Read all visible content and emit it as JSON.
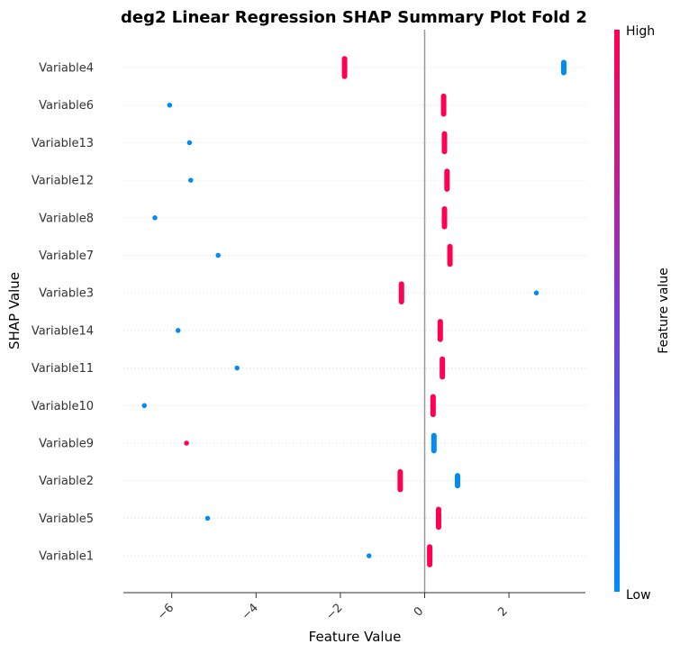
{
  "chart_data": {
    "type": "scatter",
    "title": "deg2 Linear Regression SHAP Summary Plot Fold 2",
    "xlabel": "Feature Value",
    "ylabel": "SHAP Value",
    "xlim": [
      -7.2,
      3.8
    ],
    "xticks": [
      -6,
      -4,
      -2,
      0,
      2
    ],
    "xtick_labels": [
      "−6",
      "−4",
      "−2",
      "0",
      "2"
    ],
    "grid": false,
    "zero_line": true,
    "colors": {
      "high": "#ff0052",
      "low": "#008bfb"
    },
    "colorbar": {
      "title": "Feature value",
      "high_label": "High",
      "low_label": "Low",
      "placement": "right"
    },
    "categories": [
      "Variable4",
      "Variable6",
      "Variable13",
      "Variable12",
      "Variable8",
      "Variable7",
      "Variable3",
      "Variable14",
      "Variable11",
      "Variable10",
      "Variable9",
      "Variable2",
      "Variable5",
      "Variable1"
    ],
    "series": [
      {
        "feature": "Variable4",
        "points": [
          {
            "x": -1.9,
            "level": "high",
            "spread": 0.7
          },
          {
            "x": 3.3,
            "level": "low",
            "spread": 0.4
          }
        ]
      },
      {
        "feature": "Variable6",
        "points": [
          {
            "x": -6.05,
            "level": "low",
            "spread": 0.0
          },
          {
            "x": 0.45,
            "level": "high",
            "spread": 0.7
          }
        ]
      },
      {
        "feature": "Variable13",
        "points": [
          {
            "x": -5.58,
            "level": "low",
            "spread": 0.0
          },
          {
            "x": 0.47,
            "level": "high",
            "spread": 0.7
          }
        ]
      },
      {
        "feature": "Variable12",
        "points": [
          {
            "x": -5.55,
            "level": "low",
            "spread": 0.0
          },
          {
            "x": 0.53,
            "level": "high",
            "spread": 0.7
          }
        ]
      },
      {
        "feature": "Variable8",
        "points": [
          {
            "x": -6.4,
            "level": "low",
            "spread": 0.0
          },
          {
            "x": 0.47,
            "level": "high",
            "spread": 0.7
          }
        ]
      },
      {
        "feature": "Variable7",
        "points": [
          {
            "x": -4.9,
            "level": "low",
            "spread": 0.0
          },
          {
            "x": 0.6,
            "level": "high",
            "spread": 0.7
          }
        ]
      },
      {
        "feature": "Variable3",
        "points": [
          {
            "x": -0.55,
            "level": "high",
            "spread": 0.7
          },
          {
            "x": 2.65,
            "level": "low",
            "spread": 0.0
          }
        ]
      },
      {
        "feature": "Variable14",
        "points": [
          {
            "x": -5.85,
            "level": "low",
            "spread": 0.0
          },
          {
            "x": 0.37,
            "level": "high",
            "spread": 0.7
          }
        ]
      },
      {
        "feature": "Variable11",
        "points": [
          {
            "x": -4.45,
            "level": "low",
            "spread": 0.0
          },
          {
            "x": 0.42,
            "level": "high",
            "spread": 0.7
          }
        ]
      },
      {
        "feature": "Variable10",
        "points": [
          {
            "x": -6.65,
            "level": "low",
            "spread": 0.0
          },
          {
            "x": 0.2,
            "level": "high",
            "spread": 0.7
          }
        ]
      },
      {
        "feature": "Variable9",
        "points": [
          {
            "x": -5.65,
            "level": "high",
            "spread": 0.0
          },
          {
            "x": 0.22,
            "level": "low",
            "spread": 0.6
          }
        ]
      },
      {
        "feature": "Variable2",
        "points": [
          {
            "x": -0.58,
            "level": "high",
            "spread": 0.7
          },
          {
            "x": 0.78,
            "level": "low",
            "spread": 0.4
          }
        ]
      },
      {
        "feature": "Variable5",
        "points": [
          {
            "x": -5.15,
            "level": "low",
            "spread": 0.0
          },
          {
            "x": 0.33,
            "level": "high",
            "spread": 0.7
          }
        ]
      },
      {
        "feature": "Variable1",
        "points": [
          {
            "x": -1.32,
            "level": "low",
            "spread": 0.0
          },
          {
            "x": 0.12,
            "level": "high",
            "spread": 0.7
          }
        ]
      }
    ]
  }
}
